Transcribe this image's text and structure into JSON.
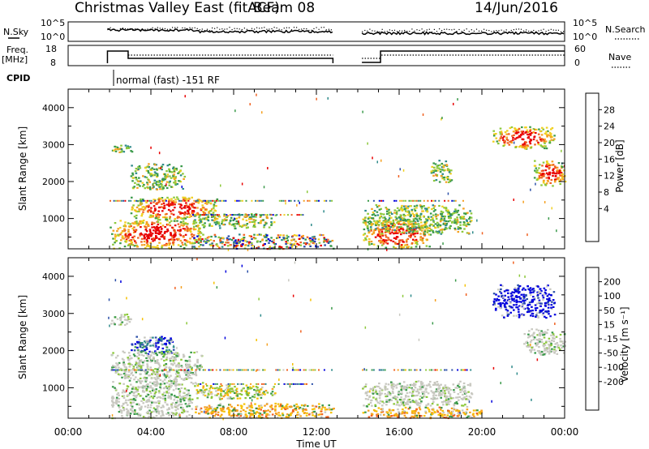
{
  "header": {
    "title": "Christmas Valley East (fitACF)",
    "beam": "Beam 08",
    "date": "14/Jun/2016"
  },
  "top_panels": {
    "nsky_label": "N.Sky",
    "nsky_ticks": [
      "10^5",
      "10^0"
    ],
    "nsearch_ticks": [
      "10^5",
      "10^0"
    ],
    "nsearch_label": "N.Search",
    "freq_label": "Freq.",
    "freq_unit": "[MHz]",
    "freq_ticks": [
      "18",
      "8"
    ],
    "nave_ticks": [
      "60",
      "0"
    ],
    "nave_label": "Nave",
    "cpid_label": "CPID",
    "cpid_text": "normal (fast) -151 RF"
  },
  "chart_data": [
    {
      "type": "heatmap",
      "name": "power",
      "ylabel": "Slant Range [km]",
      "xlabel": "Time UT",
      "xlim": [
        0,
        24
      ],
      "ylim": [
        180,
        4500
      ],
      "x_ticks": [
        "00:00",
        "04:00",
        "08:00",
        "12:00",
        "16:00",
        "20:00",
        "00:00"
      ],
      "y_ticks": [
        1000,
        2000,
        3000,
        4000
      ],
      "colorbar": {
        "label": "Power [dB]",
        "ticks": [
          "28",
          "24",
          "20",
          "16",
          "12",
          "8",
          "4"
        ],
        "colors": [
          "#0000dd",
          "#2b4fa8",
          "#2e8a8a",
          "#3a9a4a",
          "#8cc83a",
          "#f0d020",
          "#f5a020",
          "#f06020",
          "#e80000"
        ]
      },
      "data_gaps_hours": [
        [
          0,
          1.9
        ],
        [
          12.8,
          14.2
        ]
      ],
      "regions": [
        {
          "t": [
            2.0,
            3.2
          ],
          "r": [
            2800,
            3000
          ],
          "level": "mid"
        },
        {
          "t": [
            3.0,
            5.6
          ],
          "r": [
            1800,
            2500
          ],
          "level": "mid"
        },
        {
          "t": [
            3.0,
            7.2
          ],
          "r": [
            1000,
            1600
          ],
          "level": "high"
        },
        {
          "t": [
            2.0,
            6.5
          ],
          "r": [
            200,
            1000
          ],
          "level": "high"
        },
        {
          "t": [
            6.0,
            10.0
          ],
          "r": [
            750,
            1150
          ],
          "level": "mid"
        },
        {
          "t": [
            6.0,
            12.8
          ],
          "r": [
            200,
            600
          ],
          "level": "mixed"
        },
        {
          "t": [
            14.2,
            17.5
          ],
          "r": [
            200,
            1000
          ],
          "level": "high"
        },
        {
          "t": [
            14.2,
            19.5
          ],
          "r": [
            600,
            1400
          ],
          "level": "mid"
        },
        {
          "t": [
            17.5,
            18.5
          ],
          "r": [
            2000,
            2600
          ],
          "level": "mid"
        },
        {
          "t": [
            20.5,
            23.5
          ],
          "r": [
            2900,
            3500
          ],
          "level": "high"
        },
        {
          "t": [
            22.5,
            24.0
          ],
          "r": [
            1900,
            2600
          ],
          "level": "high"
        }
      ]
    },
    {
      "type": "heatmap",
      "name": "velocity",
      "ylabel": "Slant Range [km]",
      "xlabel": "Time UT",
      "xlim": [
        0,
        24
      ],
      "ylim": [
        180,
        4500
      ],
      "x_ticks": [
        "00:00",
        "04:00",
        "08:00",
        "12:00",
        "16:00",
        "20:00",
        "00:00"
      ],
      "y_ticks": [
        1000,
        2000,
        3000,
        4000
      ],
      "colorbar": {
        "label": "Velocity [m s⁻¹]",
        "ticks": [
          "200",
          "100",
          "50",
          "15",
          "-15",
          "-50",
          "-100",
          "-200"
        ],
        "colors": [
          "#0000dd",
          "#2b4fa8",
          "#2e8a8a",
          "#3a9a4a",
          "#8cc83a",
          "#c8c8c0",
          "#f5c000",
          "#f5a020",
          "#f06020",
          "#e80000"
        ]
      },
      "data_gaps_hours": [
        [
          0,
          1.9
        ],
        [
          12.8,
          14.2
        ]
      ],
      "regions": [
        {
          "t": [
            2.0,
            3.0
          ],
          "r": [
            2700,
            3000
          ],
          "level": "ground"
        },
        {
          "t": [
            3.0,
            5.2
          ],
          "r": [
            1900,
            2400
          ],
          "level": "positive"
        },
        {
          "t": [
            2.0,
            6.5
          ],
          "r": [
            1100,
            2000
          ],
          "level": "ground"
        },
        {
          "t": [
            2.0,
            6.0
          ],
          "r": [
            200,
            1100
          ],
          "level": "ground"
        },
        {
          "t": [
            6.0,
            10.0
          ],
          "r": [
            700,
            1100
          ],
          "level": "small"
        },
        {
          "t": [
            6.0,
            12.8
          ],
          "r": [
            200,
            600
          ],
          "level": "negative"
        },
        {
          "t": [
            14.2,
            19.5
          ],
          "r": [
            500,
            1200
          ],
          "level": "ground"
        },
        {
          "t": [
            14.2,
            20.0
          ],
          "r": [
            200,
            500
          ],
          "level": "negative"
        },
        {
          "t": [
            20.5,
            23.5
          ],
          "r": [
            2900,
            3800
          ],
          "level": "strong_positive"
        },
        {
          "t": [
            22.0,
            24.0
          ],
          "r": [
            1900,
            2600
          ],
          "level": "ground"
        }
      ]
    }
  ]
}
